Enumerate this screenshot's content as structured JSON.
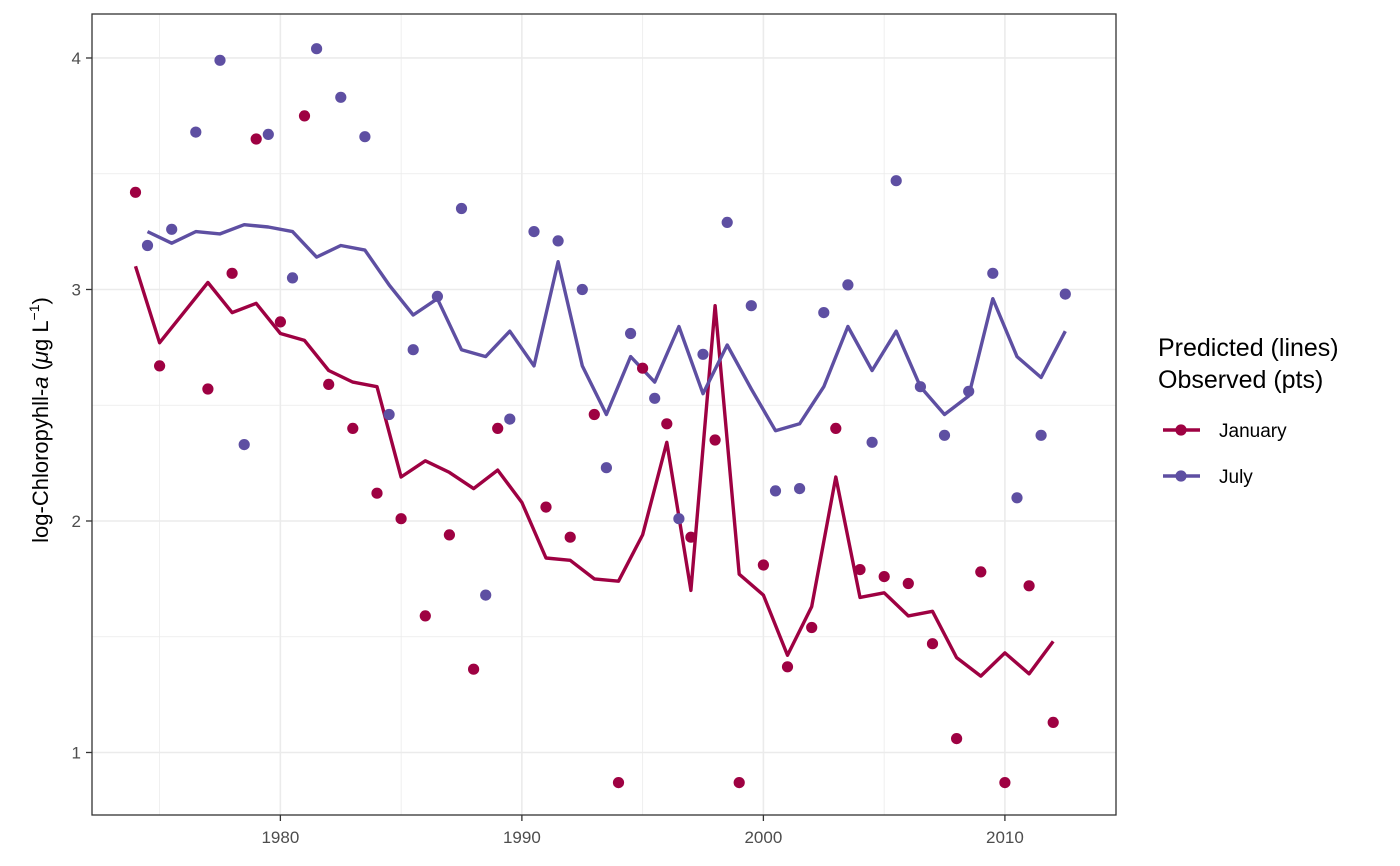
{
  "chart_data": {
    "type": "line",
    "ylabel": "log-Chloropyhll-",
    "ylabel_italic": "a",
    "ylabel_units_open": " (",
    "ylabel_mu": "μ",
    "ylabel_units_mid": "g L",
    "ylabel_sup": "−1",
    "ylabel_units_close": ")",
    "xlabel": "",
    "xlim": [
      1972.2,
      2014.6
    ],
    "ylim": [
      0.73,
      4.19
    ],
    "x_ticks": [
      1980,
      1990,
      2000,
      2010
    ],
    "y_ticks": [
      1,
      2,
      3,
      4
    ],
    "grid": true,
    "legend": {
      "placement": "right",
      "title_line1": "Predicted (lines)",
      "title_line2": "Observed (pts)"
    },
    "series": [
      {
        "name": "January",
        "color": "#9e0142",
        "predicted": {
          "x": [
            1974,
            1975,
            1976,
            1977,
            1978,
            1979,
            1980,
            1981,
            1982,
            1983,
            1984,
            1985,
            1986,
            1987,
            1988,
            1989,
            1990,
            1991,
            1992,
            1993,
            1994,
            1995,
            1996,
            1997,
            1998,
            1999,
            2000,
            2001,
            2002,
            2003,
            2004,
            2005,
            2006,
            2007,
            2008,
            2009,
            2010,
            2011,
            2012
          ],
          "y": [
            3.1,
            2.77,
            2.9,
            3.03,
            2.9,
            2.94,
            2.81,
            2.78,
            2.65,
            2.6,
            2.58,
            2.19,
            2.26,
            2.21,
            2.14,
            2.22,
            2.08,
            1.84,
            1.83,
            1.75,
            1.74,
            1.94,
            2.34,
            1.7,
            2.93,
            1.77,
            1.68,
            1.42,
            1.63,
            2.19,
            1.67,
            1.69,
            1.59,
            1.61,
            1.41,
            1.33,
            1.43,
            1.34,
            1.48
          ]
        },
        "observed": {
          "x": [
            1974,
            1975,
            1977,
            1978,
            1979,
            1980,
            1981,
            1982,
            1983,
            1984,
            1985,
            1986,
            1987,
            1988,
            1989,
            1991,
            1992,
            1993,
            1994,
            1995,
            1996,
            1997,
            1998,
            1999,
            2000,
            2001,
            2002,
            2003,
            2004,
            2005,
            2006,
            2007,
            2008,
            2009,
            2010,
            2011,
            2012
          ],
          "y": [
            3.42,
            2.67,
            2.57,
            3.07,
            3.65,
            2.86,
            3.75,
            2.59,
            2.4,
            2.12,
            2.01,
            1.59,
            1.94,
            1.36,
            2.4,
            2.06,
            1.93,
            2.46,
            0.87,
            2.66,
            2.42,
            1.93,
            2.35,
            0.87,
            1.81,
            1.37,
            1.54,
            2.4,
            1.79,
            1.76,
            1.73,
            1.47,
            1.06,
            1.78,
            0.87,
            1.72,
            1.13
          ]
        }
      },
      {
        "name": "July",
        "color": "#5e4fa2",
        "predicted": {
          "x": [
            1974.5,
            1975.5,
            1976.5,
            1977.5,
            1978.5,
            1979.5,
            1980.5,
            1981.5,
            1982.5,
            1983.5,
            1984.5,
            1985.5,
            1986.5,
            1987.5,
            1988.5,
            1989.5,
            1990.5,
            1991.5,
            1992.5,
            1993.5,
            1994.5,
            1995.5,
            1996.5,
            1997.5,
            1998.5,
            1999.5,
            2000.5,
            2001.5,
            2002.5,
            2003.5,
            2004.5,
            2005.5,
            2006.5,
            2007.5,
            2008.5,
            2009.5,
            2010.5,
            2011.5,
            2012.5
          ],
          "y": [
            3.25,
            3.2,
            3.25,
            3.24,
            3.28,
            3.27,
            3.25,
            3.14,
            3.19,
            3.17,
            3.02,
            2.89,
            2.96,
            2.74,
            2.71,
            2.82,
            2.67,
            3.12,
            2.67,
            2.46,
            2.71,
            2.6,
            2.84,
            2.55,
            2.76,
            2.57,
            2.39,
            2.42,
            2.58,
            2.84,
            2.65,
            2.82,
            2.58,
            2.46,
            2.54,
            2.96,
            2.71,
            2.62,
            2.82
          ]
        },
        "observed": {
          "x": [
            1974.5,
            1975.5,
            1976.5,
            1977.5,
            1978.5,
            1979.5,
            1980.5,
            1981.5,
            1982.5,
            1983.5,
            1984.5,
            1985.5,
            1986.5,
            1987.5,
            1988.5,
            1989.5,
            1990.5,
            1991.5,
            1992.5,
            1993.5,
            1994.5,
            1995.5,
            1996.5,
            1997.5,
            1998.5,
            1999.5,
            2000.5,
            2001.5,
            2002.5,
            2003.5,
            2004.5,
            2005.5,
            2006.5,
            2007.5,
            2008.5,
            2009.5,
            2010.5,
            2011.5,
            2012.5
          ],
          "y": [
            3.19,
            3.26,
            3.68,
            3.99,
            2.33,
            3.67,
            3.05,
            4.04,
            3.83,
            3.66,
            2.46,
            2.74,
            2.97,
            3.35,
            1.68,
            2.44,
            3.25,
            3.21,
            3.0,
            2.23,
            2.81,
            2.53,
            2.01,
            2.72,
            3.29,
            2.93,
            2.13,
            2.14,
            2.9,
            3.02,
            2.34,
            3.47,
            2.58,
            2.37,
            2.56,
            3.07,
            2.1,
            2.37,
            2.98
          ]
        }
      }
    ]
  }
}
